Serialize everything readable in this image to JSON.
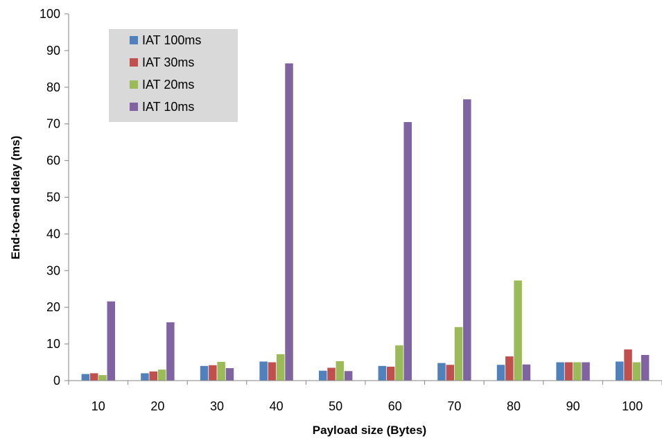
{
  "chart_data": {
    "type": "bar",
    "title": "",
    "xlabel": "Payload size (Bytes)",
    "ylabel": "End-to-end delay (ms)",
    "ylim": [
      0,
      100
    ],
    "yticks": [
      0,
      10,
      20,
      30,
      40,
      50,
      60,
      70,
      80,
      90,
      100
    ],
    "categories": [
      "10",
      "20",
      "30",
      "40",
      "50",
      "60",
      "70",
      "80",
      "90",
      "100"
    ],
    "grid": false,
    "legend_position": "top-left",
    "series": [
      {
        "name": "IAT 100ms",
        "color": "#4F81BD",
        "values": [
          1.8,
          2.0,
          4.0,
          5.2,
          2.7,
          4.0,
          4.8,
          4.3,
          5.0,
          5.2
        ]
      },
      {
        "name": "IAT 30ms",
        "color": "#C0504D",
        "values": [
          2.0,
          2.5,
          4.2,
          5.0,
          3.5,
          3.8,
          4.3,
          6.6,
          5.0,
          8.5
        ]
      },
      {
        "name": "IAT 20ms",
        "color": "#9BBB59",
        "values": [
          1.5,
          3.0,
          5.1,
          7.2,
          5.3,
          9.6,
          14.6,
          27.3,
          5.0,
          5.0
        ]
      },
      {
        "name": "IAT 10ms",
        "color": "#8064A2",
        "values": [
          21.6,
          15.9,
          3.4,
          86.5,
          2.6,
          70.5,
          76.7,
          4.4,
          5.0,
          7.0
        ]
      }
    ]
  }
}
